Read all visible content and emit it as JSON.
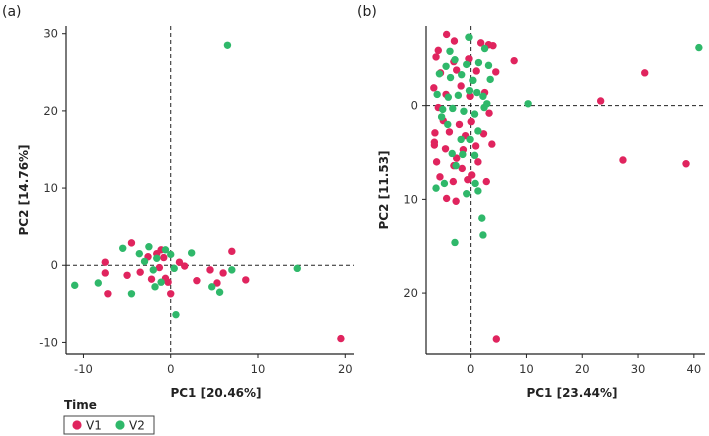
{
  "colors": {
    "V1": "#e0245e",
    "V2": "#2fb86a"
  },
  "legend": {
    "title": "Time",
    "entries": [
      "V1",
      "V2"
    ]
  },
  "chart_data": [
    {
      "panel": "(a)",
      "type": "scatter",
      "xlabel": "PC1 [20.46%]",
      "ylabel": "PC2 [14.76%]",
      "xlim": [
        -12,
        21
      ],
      "ylim": [
        -11.5,
        31
      ],
      "xticks": [
        -10,
        0,
        10,
        20
      ],
      "yticks": [
        -10,
        0,
        10,
        20,
        30
      ],
      "y_inverted": false,
      "series": [
        {
          "name": "V1",
          "points": [
            [
              -7.5,
              0.4
            ],
            [
              -7.5,
              -1.0
            ],
            [
              -7.2,
              -3.7
            ],
            [
              -4.5,
              2.9
            ],
            [
              -5.0,
              -1.3
            ],
            [
              -3.5,
              -0.9
            ],
            [
              -2.6,
              1.1
            ],
            [
              -2.2,
              -1.8
            ],
            [
              -1.6,
              1.5
            ],
            [
              -1.3,
              -0.3
            ],
            [
              -1.1,
              2.0
            ],
            [
              -0.8,
              1.0
            ],
            [
              -0.6,
              -1.7
            ],
            [
              -0.3,
              -2.2
            ],
            [
              0.0,
              -3.7
            ],
            [
              1.0,
              0.4
            ],
            [
              1.6,
              -0.1
            ],
            [
              3.0,
              -2.0
            ],
            [
              4.5,
              -0.6
            ],
            [
              5.3,
              -2.3
            ],
            [
              6.0,
              -1.0
            ],
            [
              7.0,
              1.8
            ],
            [
              8.6,
              -1.9
            ],
            [
              19.5,
              -9.5
            ]
          ]
        },
        {
          "name": "V2",
          "points": [
            [
              -11.0,
              -2.6
            ],
            [
              -8.3,
              -2.3
            ],
            [
              -5.5,
              2.2
            ],
            [
              -4.5,
              -3.7
            ],
            [
              -3.6,
              1.5
            ],
            [
              -3.0,
              0.5
            ],
            [
              -2.5,
              2.4
            ],
            [
              -2.0,
              -0.6
            ],
            [
              -1.8,
              -2.8
            ],
            [
              -1.6,
              0.9
            ],
            [
              -1.1,
              -2.2
            ],
            [
              -0.6,
              2.0
            ],
            [
              0.0,
              1.4
            ],
            [
              0.4,
              -0.4
            ],
            [
              0.6,
              -6.4
            ],
            [
              2.4,
              1.6
            ],
            [
              4.7,
              -2.8
            ],
            [
              5.6,
              -3.5
            ],
            [
              6.5,
              28.5
            ],
            [
              7.0,
              -0.6
            ],
            [
              14.5,
              -0.4
            ]
          ]
        }
      ]
    },
    {
      "panel": "(b)",
      "type": "scatter",
      "xlabel": "PC1 [23.44%]",
      "ylabel": "PC2 [11.53]",
      "xlim": [
        -8,
        42
      ],
      "ylim": [
        -8.5,
        26.5
      ],
      "xticks": [
        0,
        10,
        20,
        30,
        40
      ],
      "yticks": [
        0,
        10,
        20
      ],
      "y_inverted": true,
      "series": [
        {
          "name": "V1",
          "points": [
            [
              -4.3,
              -7.6
            ],
            [
              -2.9,
              -6.9
            ],
            [
              1.8,
              -6.7
            ],
            [
              3.2,
              -6.5
            ],
            [
              4.0,
              -6.4
            ],
            [
              -6.2,
              -5.2
            ],
            [
              -5.8,
              -5.9
            ],
            [
              -3.0,
              -4.7
            ],
            [
              -0.3,
              -5.0
            ],
            [
              7.8,
              -4.8
            ],
            [
              -5.4,
              -3.5
            ],
            [
              -2.5,
              -3.8
            ],
            [
              1.0,
              -3.7
            ],
            [
              4.5,
              -3.6
            ],
            [
              -6.6,
              -1.9
            ],
            [
              -4.4,
              -1.2
            ],
            [
              -1.7,
              -2.1
            ],
            [
              -0.1,
              -1.0
            ],
            [
              2.5,
              -1.4
            ],
            [
              -5.8,
              0.2
            ],
            [
              -4.9,
              1.6
            ],
            [
              -2.0,
              2.0
            ],
            [
              0.1,
              1.7
            ],
            [
              3.3,
              0.8
            ],
            [
              -6.4,
              2.9
            ],
            [
              -3.8,
              2.8
            ],
            [
              -0.9,
              3.2
            ],
            [
              2.3,
              3.0
            ],
            [
              -6.5,
              4.2
            ],
            [
              -4.5,
              4.6
            ],
            [
              -1.3,
              4.7
            ],
            [
              0.9,
              4.3
            ],
            [
              3.8,
              4.1
            ],
            [
              -6.1,
              6.0
            ],
            [
              -3.0,
              6.4
            ],
            [
              -1.5,
              6.7
            ],
            [
              1.3,
              6.0
            ],
            [
              -5.5,
              7.6
            ],
            [
              -3.1,
              8.1
            ],
            [
              -0.5,
              7.9
            ],
            [
              2.8,
              8.1
            ],
            [
              -4.3,
              9.9
            ],
            [
              -2.6,
              10.2
            ],
            [
              -6.5,
              3.9
            ],
            [
              -2.5,
              5.6
            ],
            [
              0.2,
              7.4
            ],
            [
              4.6,
              24.9
            ],
            [
              23.3,
              -0.5
            ],
            [
              27.3,
              5.8
            ],
            [
              31.2,
              -3.5
            ],
            [
              38.6,
              6.2
            ]
          ]
        },
        {
          "name": "V2",
          "points": [
            [
              -0.3,
              -7.3
            ],
            [
              2.5,
              -6.1
            ],
            [
              -2.8,
              -4.9
            ],
            [
              1.4,
              -4.6
            ],
            [
              3.2,
              -4.3
            ],
            [
              -5.6,
              -3.4
            ],
            [
              -3.6,
              -3.0
            ],
            [
              -1.6,
              -3.3
            ],
            [
              0.4,
              -2.7
            ],
            [
              3.5,
              -2.8
            ],
            [
              -6.0,
              -1.2
            ],
            [
              -4.0,
              -0.9
            ],
            [
              -2.2,
              -1.1
            ],
            [
              -0.2,
              -1.6
            ],
            [
              2.2,
              -1.0
            ],
            [
              -3.2,
              0.3
            ],
            [
              -1.2,
              0.6
            ],
            [
              0.7,
              0.9
            ],
            [
              2.4,
              0.2
            ],
            [
              -5.2,
              1.2
            ],
            [
              -4.1,
              2.0
            ],
            [
              -1.7,
              3.6
            ],
            [
              -0.1,
              3.6
            ],
            [
              1.3,
              2.7
            ],
            [
              -3.3,
              5.1
            ],
            [
              -1.4,
              5.2
            ],
            [
              0.7,
              5.3
            ],
            [
              -2.6,
              6.4
            ],
            [
              -0.7,
              9.4
            ],
            [
              -6.2,
              8.8
            ],
            [
              0.8,
              8.3
            ],
            [
              1.3,
              9.1
            ],
            [
              -4.7,
              8.3
            ],
            [
              2.0,
              12.0
            ],
            [
              2.2,
              13.8
            ],
            [
              -2.8,
              14.6
            ],
            [
              10.3,
              -0.2
            ],
            [
              40.9,
              -6.2
            ],
            [
              -3.7,
              -5.8
            ],
            [
              -0.7,
              -4.4
            ],
            [
              -5.0,
              0.4
            ],
            [
              1.1,
              -1.4
            ],
            [
              2.9,
              -0.2
            ],
            [
              -4.4,
              -4.2
            ]
          ]
        }
      ]
    }
  ]
}
